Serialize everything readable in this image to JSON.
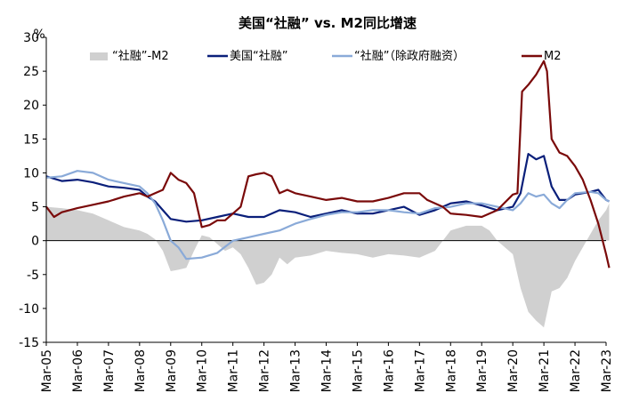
{
  "chart_data": {
    "type": "line",
    "title": "美国“社融” vs. M2同比增速",
    "ylabel": "%",
    "xlabel": "",
    "ylim": [
      -15,
      30
    ],
    "yticks": [
      -15,
      -10,
      -5,
      0,
      5,
      10,
      15,
      20,
      25,
      30
    ],
    "x_tick_labels": [
      "Mar-05",
      "Mar-06",
      "Mar-07",
      "Mar-08",
      "Mar-09",
      "Mar-10",
      "Mar-11",
      "Mar-12",
      "Mar-13",
      "Mar-14",
      "Mar-15",
      "Mar-16",
      "Mar-17",
      "Mar-18",
      "Mar-19",
      "Mar-20",
      "Mar-21",
      "Mar-22",
      "Mar-23"
    ],
    "x_start_year": 2005,
    "x_end_year": 2023,
    "legend_position": "top",
    "series": [
      {
        "name": "“社融”-M2",
        "kind": "area",
        "color": "#d0d0d0",
        "points": [
          [
            2005,
            5
          ],
          [
            2005.5,
            4.8
          ],
          [
            2006,
            4.5
          ],
          [
            2006.5,
            4
          ],
          [
            2007,
            3
          ],
          [
            2007.5,
            2
          ],
          [
            2008,
            1.5
          ],
          [
            2008.25,
            1
          ],
          [
            2008.5,
            0.2
          ],
          [
            2008.75,
            -1.5
          ],
          [
            2009,
            -4.5
          ],
          [
            2009.25,
            -4.3
          ],
          [
            2009.5,
            -4
          ],
          [
            2009.75,
            -1.5
          ],
          [
            2010,
            0.8
          ],
          [
            2010.25,
            0.5
          ],
          [
            2010.5,
            -0.5
          ],
          [
            2010.75,
            -1.5
          ],
          [
            2011,
            -1
          ],
          [
            2011.25,
            -2
          ],
          [
            2011.5,
            -4
          ],
          [
            2011.75,
            -6.5
          ],
          [
            2012,
            -6.2
          ],
          [
            2012.25,
            -5
          ],
          [
            2012.5,
            -2.5
          ],
          [
            2012.75,
            -3.5
          ],
          [
            2013,
            -2.5
          ],
          [
            2013.5,
            -2.2
          ],
          [
            2014,
            -1.5
          ],
          [
            2014.5,
            -1.8
          ],
          [
            2015,
            -2
          ],
          [
            2015.5,
            -2.5
          ],
          [
            2016,
            -2
          ],
          [
            2016.5,
            -2.2
          ],
          [
            2017,
            -2.5
          ],
          [
            2017.5,
            -1.5
          ],
          [
            2018,
            1.5
          ],
          [
            2018.5,
            2.2
          ],
          [
            2019,
            2.2
          ],
          [
            2019.25,
            1.5
          ],
          [
            2019.5,
            0
          ],
          [
            2019.75,
            -1
          ],
          [
            2020,
            -2
          ],
          [
            2020.25,
            -7
          ],
          [
            2020.5,
            -10.5
          ],
          [
            2020.75,
            -11.8
          ],
          [
            2021,
            -12.8
          ],
          [
            2021.25,
            -7.5
          ],
          [
            2021.5,
            -7
          ],
          [
            2021.75,
            -5.5
          ],
          [
            2022,
            -3
          ],
          [
            2022.25,
            -1
          ],
          [
            2022.5,
            1
          ],
          [
            2022.75,
            3
          ],
          [
            2023,
            4.5
          ],
          [
            2023.1,
            5.5
          ]
        ]
      },
      {
        "name": "美国“社融”",
        "kind": "line",
        "color": "#0a1f7a",
        "points": [
          [
            2005,
            9.5
          ],
          [
            2005.5,
            8.8
          ],
          [
            2006,
            9
          ],
          [
            2006.5,
            8.6
          ],
          [
            2007,
            8
          ],
          [
            2007.5,
            7.8
          ],
          [
            2008,
            7.5
          ],
          [
            2008.25,
            6.5
          ],
          [
            2008.5,
            5.8
          ],
          [
            2008.75,
            4.5
          ],
          [
            2009,
            3.2
          ],
          [
            2009.25,
            3
          ],
          [
            2009.5,
            2.8
          ],
          [
            2010,
            3
          ],
          [
            2010.5,
            3.5
          ],
          [
            2011,
            4
          ],
          [
            2011.5,
            3.5
          ],
          [
            2012,
            3.5
          ],
          [
            2012.5,
            4.5
          ],
          [
            2013,
            4.2
          ],
          [
            2013.5,
            3.5
          ],
          [
            2014,
            4
          ],
          [
            2014.5,
            4.5
          ],
          [
            2015,
            4
          ],
          [
            2015.5,
            4
          ],
          [
            2016,
            4.5
          ],
          [
            2016.5,
            5
          ],
          [
            2017,
            3.8
          ],
          [
            2017.5,
            4.5
          ],
          [
            2018,
            5.5
          ],
          [
            2018.5,
            5.8
          ],
          [
            2019,
            5.2
          ],
          [
            2019.5,
            4.5
          ],
          [
            2020,
            5
          ],
          [
            2020.25,
            7
          ],
          [
            2020.5,
            12.8
          ],
          [
            2020.75,
            12
          ],
          [
            2021,
            12.5
          ],
          [
            2021.25,
            8
          ],
          [
            2021.5,
            6
          ],
          [
            2021.75,
            6
          ],
          [
            2022,
            6.8
          ],
          [
            2022.5,
            7.2
          ],
          [
            2022.75,
            7.5
          ],
          [
            2023,
            6
          ],
          [
            2023.1,
            5.8
          ]
        ]
      },
      {
        "name": "“社融”（除政府融资）",
        "kind": "line",
        "color": "#8aaad8",
        "points": [
          [
            2005,
            9.3
          ],
          [
            2005.5,
            9.5
          ],
          [
            2006,
            10.3
          ],
          [
            2006.5,
            10
          ],
          [
            2007,
            9
          ],
          [
            2007.5,
            8.5
          ],
          [
            2008,
            8
          ],
          [
            2008.25,
            7
          ],
          [
            2008.5,
            5.5
          ],
          [
            2008.75,
            3
          ],
          [
            2009,
            0
          ],
          [
            2009.25,
            -1
          ],
          [
            2009.5,
            -2.7
          ],
          [
            2010,
            -2.5
          ],
          [
            2010.5,
            -1.8
          ],
          [
            2011,
            0
          ],
          [
            2011.5,
            0.5
          ],
          [
            2012,
            1
          ],
          [
            2012.5,
            1.5
          ],
          [
            2013,
            2.5
          ],
          [
            2013.5,
            3.2
          ],
          [
            2014,
            3.8
          ],
          [
            2014.5,
            4.2
          ],
          [
            2015,
            4.2
          ],
          [
            2015.5,
            4.5
          ],
          [
            2016,
            4.5
          ],
          [
            2016.5,
            4.2
          ],
          [
            2017,
            4
          ],
          [
            2017.5,
            4.8
          ],
          [
            2018,
            5
          ],
          [
            2018.5,
            5.5
          ],
          [
            2019,
            5.5
          ],
          [
            2019.5,
            5
          ],
          [
            2020,
            4.5
          ],
          [
            2020.25,
            5.5
          ],
          [
            2020.5,
            7
          ],
          [
            2020.75,
            6.5
          ],
          [
            2021,
            6.8
          ],
          [
            2021.25,
            5.5
          ],
          [
            2021.5,
            4.8
          ],
          [
            2021.75,
            6
          ],
          [
            2022,
            7
          ],
          [
            2022.5,
            7.2
          ],
          [
            2022.75,
            7
          ],
          [
            2023,
            6
          ],
          [
            2023.1,
            5.8
          ]
        ]
      },
      {
        "name": "M2",
        "kind": "line",
        "color": "#7a0a0a",
        "points": [
          [
            2005,
            5
          ],
          [
            2005.25,
            3.5
          ],
          [
            2005.5,
            4.2
          ],
          [
            2006,
            4.8
          ],
          [
            2006.5,
            5.3
          ],
          [
            2007,
            5.8
          ],
          [
            2007.5,
            6.5
          ],
          [
            2008,
            7
          ],
          [
            2008.25,
            6.5
          ],
          [
            2008.5,
            7
          ],
          [
            2008.75,
            7.5
          ],
          [
            2009,
            10
          ],
          [
            2009.25,
            9
          ],
          [
            2009.5,
            8.5
          ],
          [
            2009.75,
            7
          ],
          [
            2010,
            2
          ],
          [
            2010.25,
            2.3
          ],
          [
            2010.5,
            3
          ],
          [
            2010.75,
            3
          ],
          [
            2011,
            4
          ],
          [
            2011.25,
            5
          ],
          [
            2011.5,
            9.5
          ],
          [
            2011.75,
            9.8
          ],
          [
            2012,
            10
          ],
          [
            2012.25,
            9.5
          ],
          [
            2012.5,
            7
          ],
          [
            2012.75,
            7.5
          ],
          [
            2013,
            7
          ],
          [
            2013.5,
            6.5
          ],
          [
            2014,
            6
          ],
          [
            2014.5,
            6.3
          ],
          [
            2015,
            5.8
          ],
          [
            2015.5,
            5.8
          ],
          [
            2016,
            6.3
          ],
          [
            2016.5,
            7
          ],
          [
            2017,
            7
          ],
          [
            2017.25,
            6
          ],
          [
            2017.5,
            5.5
          ],
          [
            2017.75,
            5
          ],
          [
            2018,
            4
          ],
          [
            2018.5,
            3.8
          ],
          [
            2019,
            3.5
          ],
          [
            2019.5,
            4.5
          ],
          [
            2020,
            6.8
          ],
          [
            2020.15,
            7
          ],
          [
            2020.3,
            22
          ],
          [
            2020.5,
            23
          ],
          [
            2020.75,
            24.5
          ],
          [
            2021,
            26.5
          ],
          [
            2021.1,
            25
          ],
          [
            2021.25,
            15
          ],
          [
            2021.5,
            13
          ],
          [
            2021.75,
            12.5
          ],
          [
            2022,
            11
          ],
          [
            2022.25,
            9
          ],
          [
            2022.5,
            6
          ],
          [
            2022.75,
            2.5
          ],
          [
            2023,
            -2
          ],
          [
            2023.1,
            -4
          ]
        ]
      }
    ]
  }
}
